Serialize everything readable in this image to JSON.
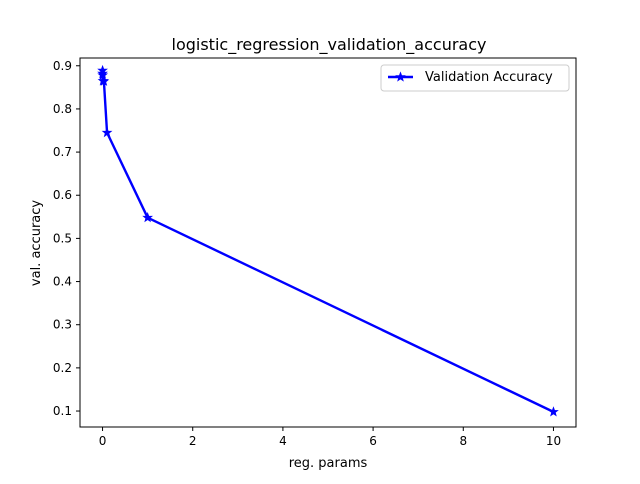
{
  "chart_data": {
    "type": "line",
    "title": "logistic_regression_validation_accuracy",
    "xlabel": "reg. params",
    "ylabel": "val. accuracy",
    "xlim": [
      -0.5,
      10.5
    ],
    "ylim": [
      0.063,
      0.918
    ],
    "x_ticks": [
      0,
      2,
      4,
      6,
      8,
      10
    ],
    "x_tick_labels": [
      "0",
      "2",
      "4",
      "6",
      "8",
      "10"
    ],
    "y_ticks": [
      0.1,
      0.2,
      0.3,
      0.4,
      0.5,
      0.6,
      0.7,
      0.8,
      0.9
    ],
    "y_tick_labels": [
      "0.1",
      "0.2",
      "0.3",
      "0.4",
      "0.5",
      "0.6",
      "0.7",
      "0.8",
      "0.9"
    ],
    "grid": false,
    "legend_position": "top-right",
    "series": [
      {
        "name": "Validation Accuracy",
        "color": "#0000ff",
        "marker": "star",
        "x": [
          0.0001,
          0.001,
          0.003,
          0.01,
          0.03,
          0.1,
          1,
          10
        ],
        "y": [
          0.882,
          0.889,
          0.878,
          0.865,
          0.864,
          0.745,
          0.548,
          0.098
        ]
      }
    ]
  }
}
